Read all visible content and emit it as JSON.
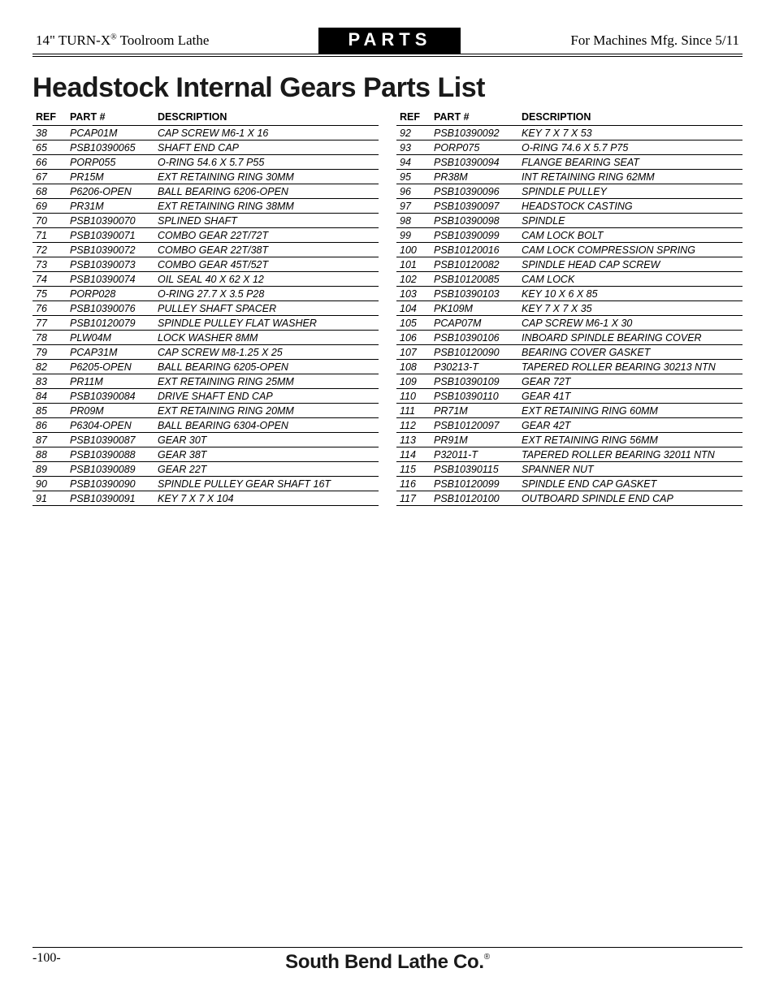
{
  "header": {
    "left_prefix": "14\" TURN-X",
    "left_reg": "®",
    "left_suffix": " Toolroom Lathe",
    "center": "PARTS",
    "right": "For Machines Mfg. Since 5/11"
  },
  "title": "Headstock Internal Gears Parts List",
  "columns": {
    "ref": "REF",
    "part": "PART #",
    "desc": "DESCRIPTION"
  },
  "left_rows": [
    {
      "ref": "38",
      "part": "PCAP01M",
      "desc": "CAP SCREW M6-1 X 16"
    },
    {
      "ref": "65",
      "part": "PSB10390065",
      "desc": "SHAFT END CAP"
    },
    {
      "ref": "66",
      "part": "PORP055",
      "desc": "O-RING 54.6 X 5.7 P55"
    },
    {
      "ref": "67",
      "part": "PR15M",
      "desc": "EXT RETAINING RING 30MM"
    },
    {
      "ref": "68",
      "part": "P6206-OPEN",
      "desc": "BALL BEARING 6206-OPEN"
    },
    {
      "ref": "69",
      "part": "PR31M",
      "desc": "EXT RETAINING RING 38MM"
    },
    {
      "ref": "70",
      "part": "PSB10390070",
      "desc": "SPLINED SHAFT"
    },
    {
      "ref": "71",
      "part": "PSB10390071",
      "desc": "COMBO GEAR 22T/72T"
    },
    {
      "ref": "72",
      "part": "PSB10390072",
      "desc": "COMBO GEAR 22T/38T"
    },
    {
      "ref": "73",
      "part": "PSB10390073",
      "desc": "COMBO GEAR 45T/52T"
    },
    {
      "ref": "74",
      "part": "PSB10390074",
      "desc": "OIL SEAL 40 X 62 X 12"
    },
    {
      "ref": "75",
      "part": "PORP028",
      "desc": "O-RING 27.7 X 3.5 P28"
    },
    {
      "ref": "76",
      "part": "PSB10390076",
      "desc": "PULLEY SHAFT SPACER"
    },
    {
      "ref": "77",
      "part": "PSB10120079",
      "desc": "SPINDLE PULLEY FLAT WASHER"
    },
    {
      "ref": "78",
      "part": "PLW04M",
      "desc": "LOCK WASHER 8MM"
    },
    {
      "ref": "79",
      "part": "PCAP31M",
      "desc": "CAP SCREW M8-1.25 X 25"
    },
    {
      "ref": "82",
      "part": "P6205-OPEN",
      "desc": "BALL BEARING 6205-OPEN"
    },
    {
      "ref": "83",
      "part": "PR11M",
      "desc": "EXT RETAINING RING 25MM"
    },
    {
      "ref": "84",
      "part": "PSB10390084",
      "desc": "DRIVE SHAFT END CAP"
    },
    {
      "ref": "85",
      "part": "PR09M",
      "desc": "EXT RETAINING RING 20MM"
    },
    {
      "ref": "86",
      "part": "P6304-OPEN",
      "desc": "BALL BEARING 6304-OPEN"
    },
    {
      "ref": "87",
      "part": "PSB10390087",
      "desc": "GEAR 30T"
    },
    {
      "ref": "88",
      "part": "PSB10390088",
      "desc": "GEAR 38T"
    },
    {
      "ref": "89",
      "part": "PSB10390089",
      "desc": "GEAR 22T"
    },
    {
      "ref": "90",
      "part": "PSB10390090",
      "desc": "SPINDLE PULLEY GEAR SHAFT 16T"
    },
    {
      "ref": "91",
      "part": "PSB10390091",
      "desc": "KEY 7 X 7 X 104"
    }
  ],
  "right_rows": [
    {
      "ref": "92",
      "part": "PSB10390092",
      "desc": "KEY 7 X 7 X 53"
    },
    {
      "ref": "93",
      "part": "PORP075",
      "desc": "O-RING 74.6 X 5.7 P75"
    },
    {
      "ref": "94",
      "part": "PSB10390094",
      "desc": "FLANGE BEARING SEAT"
    },
    {
      "ref": "95",
      "part": "PR38M",
      "desc": "INT RETAINING RING 62MM"
    },
    {
      "ref": "96",
      "part": "PSB10390096",
      "desc": "SPINDLE PULLEY"
    },
    {
      "ref": "97",
      "part": "PSB10390097",
      "desc": "HEADSTOCK CASTING"
    },
    {
      "ref": "98",
      "part": "PSB10390098",
      "desc": "SPINDLE"
    },
    {
      "ref": "99",
      "part": "PSB10390099",
      "desc": "CAM LOCK BOLT"
    },
    {
      "ref": "100",
      "part": "PSB10120016",
      "desc": "CAM LOCK COMPRESSION SPRING"
    },
    {
      "ref": "101",
      "part": "PSB10120082",
      "desc": "SPINDLE HEAD CAP SCREW"
    },
    {
      "ref": "102",
      "part": "PSB10120085",
      "desc": "CAM LOCK"
    },
    {
      "ref": "103",
      "part": "PSB10390103",
      "desc": "KEY 10 X 6 X 85"
    },
    {
      "ref": "104",
      "part": "PK109M",
      "desc": "KEY 7 X 7 X 35"
    },
    {
      "ref": "105",
      "part": "PCAP07M",
      "desc": "CAP SCREW M6-1 X 30"
    },
    {
      "ref": "106",
      "part": "PSB10390106",
      "desc": "INBOARD SPINDLE BEARING COVER"
    },
    {
      "ref": "107",
      "part": "PSB10120090",
      "desc": "BEARING COVER GASKET"
    },
    {
      "ref": "108",
      "part": "P30213-T",
      "desc": "TAPERED ROLLER BEARING 30213 NTN"
    },
    {
      "ref": "109",
      "part": "PSB10390109",
      "desc": "GEAR 72T"
    },
    {
      "ref": "110",
      "part": "PSB10390110",
      "desc": "GEAR 41T"
    },
    {
      "ref": "111",
      "part": "PR71M",
      "desc": "EXT RETAINING RING 60MM"
    },
    {
      "ref": "112",
      "part": "PSB10120097",
      "desc": "GEAR 42T"
    },
    {
      "ref": "113",
      "part": "PR91M",
      "desc": "EXT RETAINING RING 56MM"
    },
    {
      "ref": "114",
      "part": "P32011-T",
      "desc": "TAPERED ROLLER BEARING 32011 NTN"
    },
    {
      "ref": "115",
      "part": "PSB10390115",
      "desc": "SPANNER NUT"
    },
    {
      "ref": "116",
      "part": "PSB10120099",
      "desc": "SPINDLE END CAP GASKET"
    },
    {
      "ref": "117",
      "part": "PSB10120100",
      "desc": "OUTBOARD SPINDLE END CAP"
    }
  ],
  "footer": {
    "page": "-100-",
    "brand": "South Bend Lathe Co.",
    "brand_reg": "®"
  }
}
